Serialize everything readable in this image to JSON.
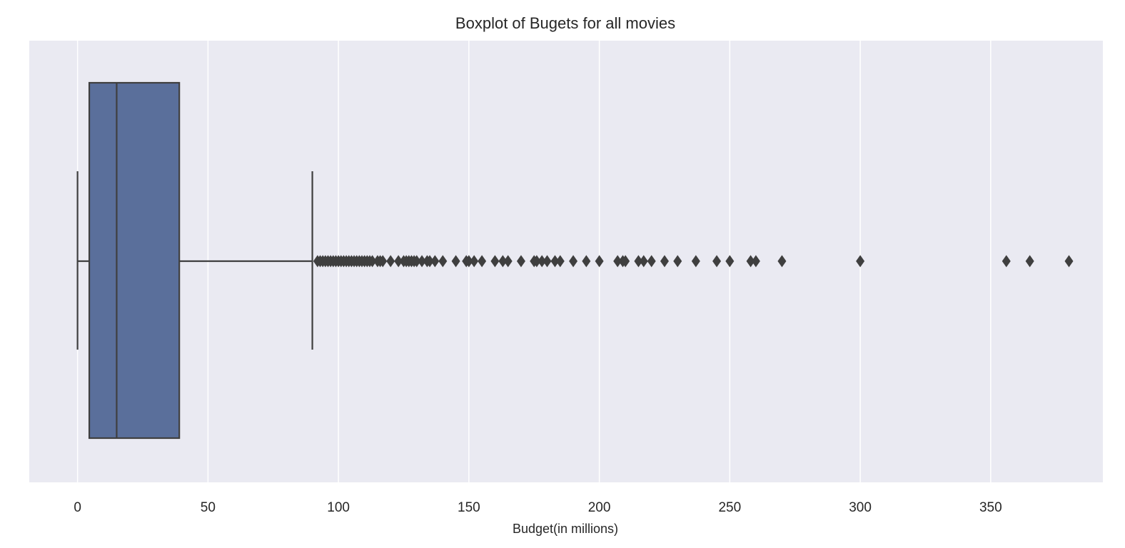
{
  "chart_data": {
    "type": "boxplot",
    "title": "Boxplot of Bugets for all movies",
    "xlabel": "Budget(in millions)",
    "ylabel": "",
    "orientation": "horizontal",
    "xlim": [
      -18.5,
      393
    ],
    "xticks": [
      0,
      50,
      100,
      150,
      200,
      250,
      300,
      350
    ],
    "xtick_labels": [
      "0",
      "50",
      "100",
      "150",
      "200",
      "250",
      "300",
      "350"
    ],
    "grid": "vertical",
    "colors": {
      "box_fill": "#5a6f9b",
      "line": "#3f3f3f",
      "background": "#eaeaf2",
      "grid": "#ffffff"
    },
    "box": {
      "whisker_low": 0,
      "q1": 4.5,
      "median": 15,
      "q3": 39,
      "whisker_high": 90
    },
    "outliers": [
      92,
      93,
      94,
      95,
      96,
      97,
      98,
      99,
      100,
      101,
      102,
      103,
      104,
      105,
      106,
      107,
      108,
      109,
      110,
      111,
      112,
      113,
      115,
      116,
      117,
      120,
      123,
      125,
      126,
      127,
      128,
      129,
      130,
      132,
      134,
      135,
      137,
      140,
      145,
      149,
      150,
      152,
      155,
      160,
      163,
      165,
      170,
      175,
      176,
      178,
      180,
      183,
      185,
      190,
      195,
      200,
      207,
      209,
      210,
      215,
      217,
      220,
      225,
      230,
      237,
      245,
      250,
      258,
      260,
      270,
      300,
      356,
      365,
      380
    ]
  }
}
